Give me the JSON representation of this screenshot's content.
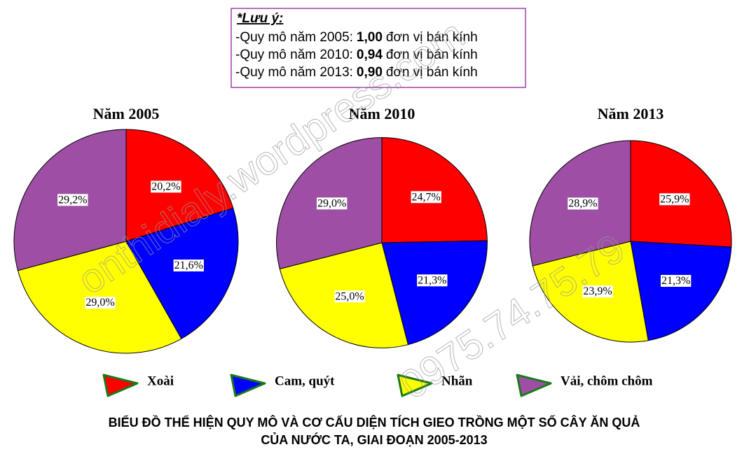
{
  "note": {
    "title": "*Lưu ý:",
    "lines": [
      {
        "text": "-Quy mô năm 2005:",
        "value_label": "1,00",
        "unit": "đơn vị bán kính"
      },
      {
        "text": "-Quy mô năm 2010:",
        "value_label": "0,94",
        "unit": "đơn vị bán kính"
      },
      {
        "text": "-Quy mô năm 2013:",
        "value_label": "0,90",
        "unit": "đơn vị bán kính"
      }
    ]
  },
  "chart_data": [
    {
      "type": "pie",
      "title": "Năm 2005",
      "radius": 1.0,
      "categories": [
        "Xoài",
        "Cam, quýt",
        "Nhãn",
        "Vải, chôm chôm"
      ],
      "colors": [
        "#ff0000",
        "#0000ff",
        "#ffff00",
        "#9e4fa5"
      ],
      "values": [
        20.2,
        21.6,
        29.0,
        29.2
      ],
      "value_labels": [
        "20,2%",
        "21,6%",
        "29,0%",
        "29,2%"
      ]
    },
    {
      "type": "pie",
      "title": "Năm 2010",
      "radius": 0.94,
      "categories": [
        "Xoài",
        "Cam, quýt",
        "Nhãn",
        "Vải, chôm chôm"
      ],
      "colors": [
        "#ff0000",
        "#0000ff",
        "#ffff00",
        "#9e4fa5"
      ],
      "values": [
        24.7,
        21.3,
        25.0,
        29.0
      ],
      "value_labels": [
        "24,7%",
        "21,3%",
        "25,0%",
        "29,0%"
      ]
    },
    {
      "type": "pie",
      "title": "Năm 2013",
      "radius": 0.9,
      "categories": [
        "Xoài",
        "Cam, quýt",
        "Nhãn",
        "Vải, chôm chôm"
      ],
      "colors": [
        "#ff0000",
        "#0000ff",
        "#ffff00",
        "#9e4fa5"
      ],
      "values": [
        25.9,
        21.3,
        23.9,
        28.9
      ],
      "value_labels": [
        "25,9%",
        "21,3%",
        "23,9%",
        "28,9%"
      ]
    }
  ],
  "caption": [
    "BIỂU ĐỒ THỂ HIỆN QUY MÔ VÀ CƠ CẤU DIỆN TÍCH GIEO TRỒNG MỘT SỐ CÂY ĂN QUẢ",
    "CỦA NƯỚC TA, GIAI ĐOẠN 2005-2013"
  ],
  "watermark": [
    "onthidialy.wordpress.com",
    "0975.74.75.79"
  ]
}
